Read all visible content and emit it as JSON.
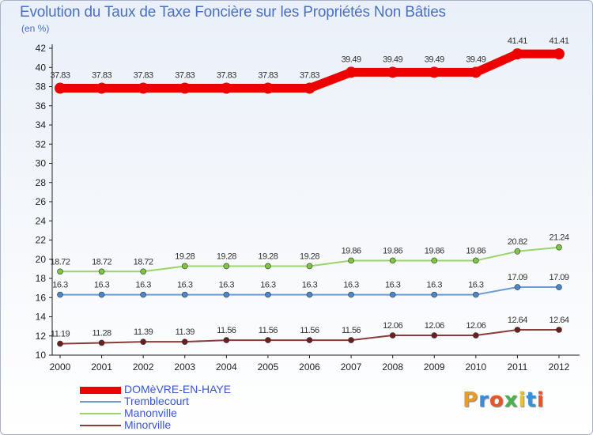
{
  "title": "Evolution du Taux de Taxe Foncière sur les Propriétés Non Bâties",
  "unit": "(en %)",
  "logo": {
    "letters": [
      "P",
      "r",
      "o",
      "x",
      "i",
      "t",
      "i"
    ],
    "colors": [
      "#e89a2a",
      "#3a8fd8",
      "#e8542a",
      "#4caf50",
      "#e8c22a",
      "#3a8fd8",
      "#e8542a"
    ]
  },
  "chart_data": {
    "type": "line",
    "title": "Evolution du Taux de Taxe Foncière sur les Propriétés Non Bâties",
    "ylabel": "(en %)",
    "xlabel": "",
    "ylim": [
      10,
      42
    ],
    "yticks": [
      "10",
      "12",
      "14",
      "16",
      "18",
      "20",
      "22",
      "24",
      "26",
      "28",
      "30",
      "32",
      "34",
      "36",
      "38",
      "40",
      "42"
    ],
    "grid": false,
    "legend_position": "bottom-left",
    "categories": [
      "2000",
      "2001",
      "2002",
      "2003",
      "2004",
      "2005",
      "2006",
      "2007",
      "2008",
      "2009",
      "2010",
      "2011",
      "2012"
    ],
    "series": [
      {
        "name": "DOMèVRE-EN-HAYE",
        "color": "#ee0000",
        "bold": true,
        "values": [
          37.83,
          37.83,
          37.83,
          37.83,
          37.83,
          37.83,
          37.83,
          39.49,
          39.49,
          39.49,
          39.49,
          41.41,
          41.41
        ],
        "labels": [
          "37.83",
          "37.83",
          "37.83",
          "37.83",
          "37.83",
          "37.83",
          "37.83",
          "39.49",
          "39.49",
          "39.49",
          "39.49",
          "41.41",
          "41.41"
        ]
      },
      {
        "name": "Tremblecourt",
        "color": "#6d9ccd",
        "dot": "#4a88c8",
        "bold": false,
        "values": [
          16.3,
          16.3,
          16.3,
          16.3,
          16.3,
          16.3,
          16.3,
          16.3,
          16.3,
          16.3,
          16.3,
          17.09,
          17.09
        ],
        "labels": [
          "16.3",
          "16.3",
          "16.3",
          "16.3",
          "16.3",
          "16.3",
          "16.3",
          "16.3",
          "16.3",
          "16.3",
          "16.3",
          "17.09",
          "17.09"
        ]
      },
      {
        "name": "Manonville",
        "color": "#9bd46a",
        "dot": "#7ec642",
        "bold": false,
        "values": [
          18.72,
          18.72,
          18.72,
          19.28,
          19.28,
          19.28,
          19.28,
          19.86,
          19.86,
          19.86,
          19.86,
          20.82,
          21.24
        ],
        "labels": [
          "18.72",
          "18.72",
          "18.72",
          "19.28",
          "19.28",
          "19.28",
          "19.28",
          "19.86",
          "19.86",
          "19.86",
          "19.86",
          "20.82",
          "21.24"
        ]
      },
      {
        "name": "Minorville",
        "color": "#8a3b3b",
        "dot": "#6b1f1f",
        "bold": false,
        "values": [
          11.19,
          11.28,
          11.39,
          11.39,
          11.56,
          11.56,
          11.56,
          11.56,
          12.06,
          12.06,
          12.06,
          12.64,
          12.64
        ],
        "labels": [
          "11.19",
          "11.28",
          "11.39",
          "11.39",
          "11.56",
          "11.56",
          "11.56",
          "11.56",
          "12.06",
          "12.06",
          "12.06",
          "12.64",
          "12.64"
        ]
      }
    ]
  }
}
